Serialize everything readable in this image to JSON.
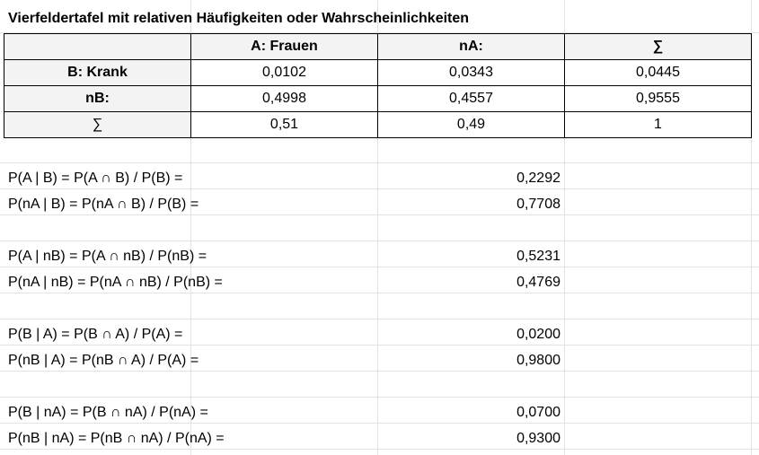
{
  "title": "Vierfeldertafel mit relativen Häufigkeiten oder Wahrscheinlichkeiten",
  "table": {
    "header": [
      "",
      "A: Frauen",
      "nA:",
      "∑"
    ],
    "rows": [
      {
        "label": "B: Krank",
        "values": [
          "0,0102",
          "0,0343",
          "0,0445"
        ]
      },
      {
        "label": "nB:",
        "values": [
          "0,4998",
          "0,4557",
          "0,9555"
        ]
      },
      {
        "label": "∑",
        "values": [
          "0,51",
          "0,49",
          "1"
        ]
      }
    ]
  },
  "conditionals": [
    {
      "formula": "P(A | B) = P(A ∩ B) / P(B) =",
      "value": "0,2292"
    },
    {
      "formula": "P(nA | B) = P(nA ∩ B) / P(B) =",
      "value": "0,7708"
    },
    {
      "formula": "P(A | nB) = P(A ∩ nB) / P(nB) =",
      "value": "0,5231"
    },
    {
      "formula": "P(nA | nB) = P(nA ∩ nB) / P(nB) =",
      "value": "0,4769"
    },
    {
      "formula": "P(B | A) = P(B ∩ A) / P(A) =",
      "value": "0,0200"
    },
    {
      "formula": "P(nB | A) = P(nB ∩ A) / P(A) =",
      "value": "0,9800"
    },
    {
      "formula": "P(B | nA) = P(B ∩ nA) / P(nA) =",
      "value": "0,0700"
    },
    {
      "formula": "P(nB | nA) = P(nB ∩ nA) / P(nA) =",
      "value": "0,9300"
    }
  ]
}
